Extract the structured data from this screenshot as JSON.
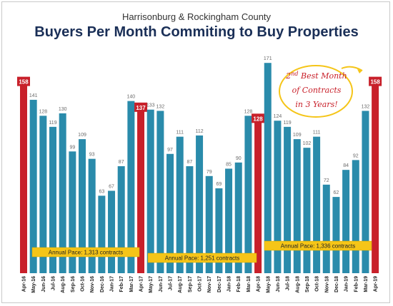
{
  "header": {
    "subtitle": "Harrisonburg & Rockingham County",
    "title": "Buyers Per Month Commiting to Buy Properties"
  },
  "callout": {
    "line1_prefix": "2",
    "line1_sup": "nd",
    "line1_suffix": " Best Month",
    "line2": "of Contracts",
    "line3": "in 3 Years!"
  },
  "colors": {
    "bar": "#2a8bab",
    "highlight": "#c8202a",
    "pace_box": "#f5c518",
    "value_text": "#6b6b6b",
    "axis_text": "#222222"
  },
  "chart_data": {
    "type": "bar",
    "title": "Buyers Per Month Commiting to Buy Properties",
    "subtitle": "Harrisonburg & Rockingham County",
    "categories": [
      "Apr-16",
      "May-16",
      "Jun-16",
      "Jul-16",
      "Aug-16",
      "Sep-16",
      "Oct-16",
      "Nov-16",
      "Dec-16",
      "Jan-17",
      "Feb-17",
      "Mar-17",
      "Apr-17",
      "May-17",
      "Jun-17",
      "Jul-17",
      "Aug-17",
      "Sep-17",
      "Oct-17",
      "Nov-17",
      "Dec-17",
      "Jan-18",
      "Feb-18",
      "Mar-18",
      "Apr-18",
      "May-18",
      "Jun-18",
      "Jul-18",
      "Aug-18",
      "Sep-18",
      "Oct-18",
      "Nov-18",
      "Dec-18",
      "Jan-19",
      "Feb-19",
      "Mar-19",
      "Apr-19"
    ],
    "values": [
      158,
      141,
      128,
      119,
      130,
      99,
      109,
      93,
      63,
      67,
      87,
      140,
      137,
      133,
      132,
      97,
      111,
      87,
      112,
      79,
      69,
      85,
      90,
      128,
      128,
      171,
      124,
      119,
      109,
      102,
      111,
      72,
      62,
      84,
      92,
      132,
      158
    ],
    "highlighted": [
      0,
      12,
      24,
      36
    ],
    "ylim": [
      0,
      180
    ],
    "grid": false,
    "annotations": [
      "Annual Pace: 1,313 contracts",
      "Annual Pace: 1,251 contracts",
      "Annual Pace: 1,336 contracts"
    ]
  }
}
